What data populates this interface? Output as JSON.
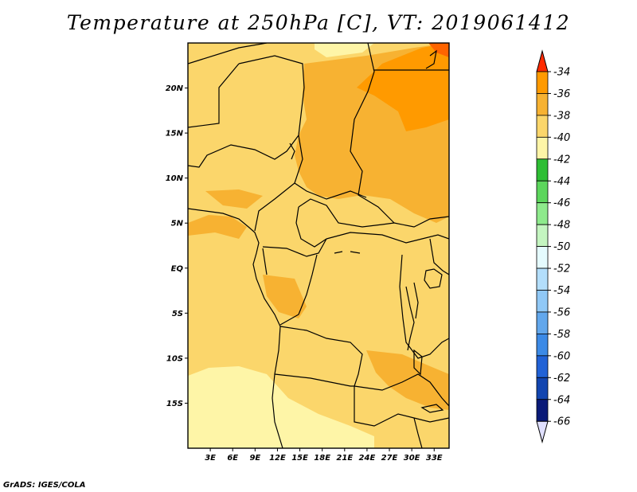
{
  "title": "Temperature at 250hPa [C], VT: 2019061412",
  "credit": "GrADS: IGES/COLA",
  "map": {
    "lon_range": [
      0,
      35
    ],
    "lat_range": [
      -20,
      25
    ],
    "lon_ticks": [
      {
        "lon": 3,
        "label": "3E"
      },
      {
        "lon": 6,
        "label": "6E"
      },
      {
        "lon": 9,
        "label": "9E"
      },
      {
        "lon": 12,
        "label": "12E"
      },
      {
        "lon": 15,
        "label": "15E"
      },
      {
        "lon": 18,
        "label": "18E"
      },
      {
        "lon": 21,
        "label": "21E"
      },
      {
        "lon": 24,
        "label": "24E"
      },
      {
        "lon": 27,
        "label": "27E"
      },
      {
        "lon": 30,
        "label": "30E"
      },
      {
        "lon": 33,
        "label": "33E"
      }
    ],
    "lat_ticks": [
      {
        "lat": 20,
        "label": "20N"
      },
      {
        "lat": 15,
        "label": "15N"
      },
      {
        "lat": 10,
        "label": "10N"
      },
      {
        "lat": 5,
        "label": "5N"
      },
      {
        "lat": 0,
        "label": "EQ"
      },
      {
        "lat": -5,
        "label": "5S"
      },
      {
        "lat": -10,
        "label": "10S"
      },
      {
        "lat": -15,
        "label": "15S"
      }
    ]
  },
  "colorbar": {
    "levels": [
      {
        "label": "-34",
        "color": "#ff6400"
      },
      {
        "label": "-36",
        "color": "#ff9a00"
      },
      {
        "label": "-38",
        "color": "#f7b232"
      },
      {
        "label": "-40",
        "color": "#fbd66b"
      },
      {
        "label": "-42",
        "color": "#fef5a7"
      },
      {
        "label": "-44",
        "color": "#2ebe34"
      },
      {
        "label": "-46",
        "color": "#5cd65c"
      },
      {
        "label": "-48",
        "color": "#8eea8c"
      },
      {
        "label": "-50",
        "color": "#c4f5c0"
      },
      {
        "label": "-52",
        "color": "#e5fbfe"
      },
      {
        "label": "-54",
        "color": "#b3defb"
      },
      {
        "label": "-56",
        "color": "#90c8f6"
      },
      {
        "label": "-58",
        "color": "#62a7ec"
      },
      {
        "label": "-60",
        "color": "#3c8ae6"
      },
      {
        "label": "-62",
        "color": "#2162d6"
      },
      {
        "label": "-64",
        "color": "#1245b0"
      },
      {
        "label": "-66",
        "color": "#0a1a78"
      }
    ],
    "top_color": "#ff2a00",
    "bottom_color": "#e0e0ff"
  }
}
